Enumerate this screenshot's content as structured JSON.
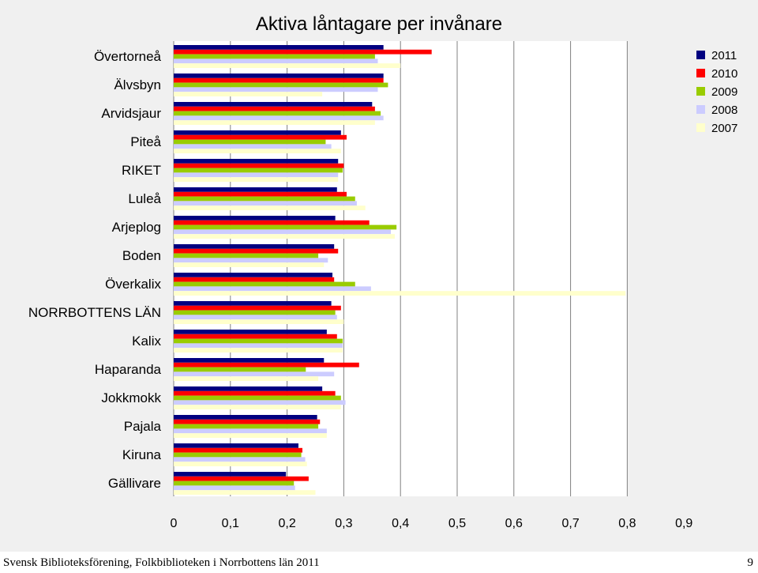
{
  "chart_data": {
    "type": "bar",
    "orientation": "horizontal",
    "title": "Aktiva låntagare per invånare",
    "categories": [
      "Övertorneå",
      "Älvsbyn",
      "Arvidsjaur",
      "Piteå",
      "RIKET",
      "Luleå",
      "Arjeplog",
      "Boden",
      "Överkalix",
      "NORRBOTTENS LÄN",
      "Kalix",
      "Haparanda",
      "Jokkmokk",
      "Pajala",
      "Kiruna",
      "Gällivare"
    ],
    "series": [
      {
        "name": "2011",
        "color": "#000080",
        "values": [
          0.37,
          0.37,
          0.35,
          0.295,
          0.29,
          0.288,
          0.285,
          0.283,
          0.28,
          0.278,
          0.27,
          0.265,
          0.262,
          0.253,
          0.22,
          0.198
        ]
      },
      {
        "name": "2010",
        "color": "#ff0000",
        "values": [
          0.455,
          0.37,
          0.355,
          0.305,
          0.3,
          0.305,
          0.345,
          0.29,
          0.283,
          0.295,
          0.288,
          0.327,
          0.285,
          0.258,
          0.227,
          0.238
        ]
      },
      {
        "name": "2009",
        "color": "#99cc00",
        "values": [
          0.355,
          0.378,
          0.365,
          0.268,
          0.298,
          0.32,
          0.393,
          0.255,
          0.32,
          0.285,
          0.298,
          0.233,
          0.295,
          0.255,
          0.225,
          0.212
        ]
      },
      {
        "name": "2008",
        "color": "#ccccff",
        "values": [
          0.36,
          0.36,
          0.37,
          0.278,
          0.29,
          0.323,
          0.383,
          0.272,
          0.348,
          0.288,
          0.298,
          0.283,
          0.303,
          0.27,
          0.232,
          0.214
        ]
      },
      {
        "name": "2007",
        "color": "#ffffcc",
        "values": [
          0.4,
          0.262,
          0.355,
          0.295,
          0.29,
          0.338,
          0.39,
          0.265,
          0.797,
          0.3,
          0.298,
          0.255,
          0.295,
          0.27,
          0.235,
          0.25
        ]
      }
    ],
    "xlabel": "",
    "ylabel": "",
    "xlim": [
      0,
      0.9
    ],
    "ticks": [
      "0",
      "0,1",
      "0,2",
      "0,3",
      "0,4",
      "0,5",
      "0,6",
      "0,7",
      "0,8",
      "0,9"
    ],
    "grid": true,
    "legend_position": "top-right"
  },
  "footer": {
    "left": "Svensk Biblioteksförening, Folkbiblioteken i Norrbottens län 2011",
    "page": "9"
  }
}
